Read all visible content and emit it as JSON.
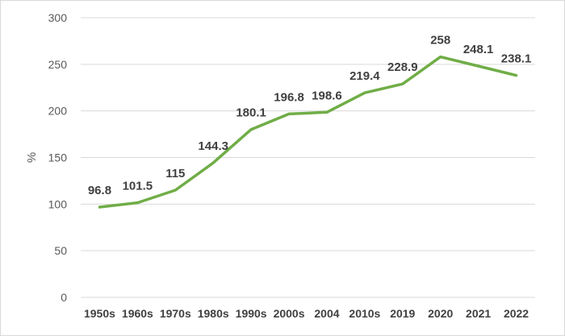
{
  "chart_data": {
    "type": "line",
    "categories": [
      "1950s",
      "1960s",
      "1970s",
      "1980s",
      "1990s",
      "2000s",
      "2004",
      "2010s",
      "2019",
      "2020",
      "2021",
      "2022"
    ],
    "series": [
      {
        "values": [
          96.8,
          101.5,
          115,
          144.3,
          180.1,
          196.8,
          198.6,
          219.4,
          228.9,
          258,
          248.1,
          238.1
        ]
      }
    ],
    "data_labels": [
      "96.8",
      "101.5",
      "115",
      "144.3",
      "180.1",
      "196.8",
      "198.6",
      "219.4",
      "228.9",
      "258",
      "248.1",
      "238.1"
    ],
    "ylabel": "%",
    "ylim": [
      0,
      300
    ],
    "yticks": [
      0,
      50,
      100,
      150,
      200,
      250,
      300
    ],
    "grid": true,
    "line_color": "#70ad47",
    "grid_color": "#d9d9d9"
  }
}
